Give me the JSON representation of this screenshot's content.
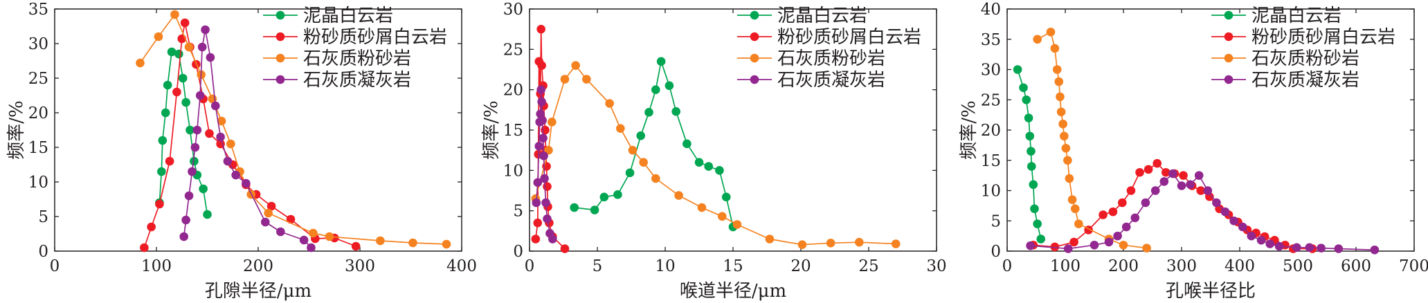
{
  "chart_data": [
    {
      "type": "line",
      "xlabel": "孔隙半径/μm",
      "ylabel": "频率/%",
      "xlim": [
        0,
        400
      ],
      "ylim": [
        0,
        35
      ],
      "xticks": [
        0,
        100,
        200,
        300,
        400
      ],
      "yticks": [
        0,
        5,
        10,
        15,
        20,
        25,
        30,
        35
      ],
      "legend_position": "top-right",
      "series": [
        {
          "name": "泥晶白云岩",
          "color": "#00a651",
          "points": [
            [
              103,
              7
            ],
            [
              105,
              11.5
            ],
            [
              106,
              16
            ],
            [
              109,
              20
            ],
            [
              111,
              24
            ],
            [
              115,
              28.8
            ],
            [
              122,
              28.5
            ],
            [
              126,
              25
            ],
            [
              129,
              21.5
            ],
            [
              133,
              17.5
            ],
            [
              137,
              13
            ],
            [
              140,
              11
            ],
            [
              146,
              9
            ],
            [
              150,
              5.3
            ]
          ]
        },
        {
          "name": "粉砂质砂屑白云岩",
          "color": "#ed1c24",
          "points": [
            [
              88,
              0.5
            ],
            [
              95,
              3.5
            ],
            [
              103,
              6.8
            ],
            [
              113,
              13
            ],
            [
              120,
              23
            ],
            [
              125,
              30.7
            ],
            [
              128,
              33
            ],
            [
              133,
              29.5
            ],
            [
              139,
              27
            ],
            [
              146,
              22
            ],
            [
              152,
              17
            ],
            [
              163,
              15.5
            ],
            [
              175,
              12.5
            ],
            [
              188,
              9.6
            ],
            [
              198,
              8.2
            ],
            [
              213,
              6.5
            ],
            [
              232,
              4.6
            ],
            [
              256,
              1.8
            ],
            [
              275,
              1.9
            ],
            [
              296,
              0.7
            ]
          ]
        },
        {
          "name": "石灰质粉砂岩",
          "color": "#f58220",
          "points": [
            [
              84,
              27.2
            ],
            [
              102,
              31
            ],
            [
              118,
              34.2
            ],
            [
              132,
              29.5
            ],
            [
              144,
              25.5
            ],
            [
              155,
              22
            ],
            [
              164,
              18.8
            ],
            [
              173,
              15.5
            ],
            [
              182,
              11.5
            ],
            [
              193,
              8.2
            ],
            [
              210,
              5.5
            ],
            [
              254,
              2.6
            ],
            [
              270,
              2.1
            ],
            [
              320,
              1.5
            ],
            [
              352,
              1.2
            ],
            [
              385,
              1
            ]
          ]
        },
        {
          "name": "石灰质凝灰岩",
          "color": "#92278f",
          "points": [
            [
              127,
              2.1
            ],
            [
              129,
              4.5
            ],
            [
              132,
              8
            ],
            [
              135,
              11.5
            ],
            [
              138,
              15
            ],
            [
              140,
              17.5
            ],
            [
              143,
              22.5
            ],
            [
              145,
              29.5
            ],
            [
              148,
              32
            ],
            [
              153,
              28
            ],
            [
              158,
              21
            ],
            [
              163,
              16.5
            ],
            [
              170,
              13
            ],
            [
              178,
              11
            ],
            [
              188,
              9.8
            ],
            [
              207,
              4.2
            ],
            [
              222,
              2.8
            ],
            [
              245,
              1.6
            ],
            [
              252,
              0.5
            ]
          ]
        }
      ]
    },
    {
      "type": "line",
      "xlabel": "喉道半径/μm",
      "ylabel": "频率/%",
      "xlim": [
        0,
        30
      ],
      "ylim": [
        0,
        30
      ],
      "xticks": [
        0,
        5,
        10,
        15,
        20,
        25,
        30
      ],
      "yticks": [
        0,
        5,
        10,
        15,
        20,
        25,
        30
      ],
      "legend_position": "top-right",
      "series": [
        {
          "name": "泥晶白云岩",
          "color": "#00a651",
          "points": [
            [
              3.3,
              5.4
            ],
            [
              4.8,
              5.1
            ],
            [
              5.5,
              6.7
            ],
            [
              6.5,
              7
            ],
            [
              7.4,
              9.7
            ],
            [
              8.2,
              14.3
            ],
            [
              8.8,
              17.2
            ],
            [
              9.3,
              20
            ],
            [
              9.7,
              23.5
            ],
            [
              10.3,
              20.5
            ],
            [
              10.8,
              17.3
            ],
            [
              11.6,
              13.3
            ],
            [
              12.5,
              11
            ],
            [
              13.2,
              10.5
            ],
            [
              14,
              10
            ],
            [
              14.5,
              6.7
            ],
            [
              15,
              3
            ]
          ]
        },
        {
          "name": "粉砂质砂屑白云岩",
          "color": "#ed1c24",
          "points": [
            [
              0.45,
              1.5
            ],
            [
              0.6,
              3.5
            ],
            [
              0.65,
              12
            ],
            [
              0.7,
              23.5
            ],
            [
              0.8,
              19.5
            ],
            [
              0.85,
              27.5
            ],
            [
              0.9,
              23
            ],
            [
              1.0,
              20.5
            ],
            [
              1.05,
              18
            ],
            [
              1.15,
              15
            ],
            [
              1.2,
              12.5
            ],
            [
              1.25,
              10.5
            ],
            [
              1.3,
              8
            ],
            [
              1.35,
              5.5
            ],
            [
              1.45,
              3.5
            ],
            [
              1.7,
              1.8
            ],
            [
              2.6,
              0.3
            ]
          ]
        },
        {
          "name": "石灰质粉砂岩",
          "color": "#f58220",
          "points": [
            [
              0.45,
              6.5
            ],
            [
              1.4,
              12.5
            ],
            [
              1.65,
              16
            ],
            [
              2.6,
              21.3
            ],
            [
              3.4,
              23
            ],
            [
              4.2,
              21.3
            ],
            [
              5.9,
              18.3
            ],
            [
              6.7,
              15.2
            ],
            [
              7.6,
              12.5
            ],
            [
              8.4,
              11
            ],
            [
              9.3,
              9
            ],
            [
              11,
              6.9
            ],
            [
              12.7,
              5.4
            ],
            [
              14.2,
              4.3
            ],
            [
              15.3,
              3.3
            ],
            [
              17.7,
              1.5
            ],
            [
              20.1,
              0.8
            ],
            [
              22.2,
              1
            ],
            [
              24.3,
              1.1
            ],
            [
              27,
              0.9
            ]
          ]
        },
        {
          "name": "石灰质凝灰岩",
          "color": "#92278f",
          "points": [
            [
              0.5,
              6
            ],
            [
              0.6,
              8.5
            ],
            [
              0.7,
              13
            ],
            [
              0.75,
              16
            ],
            [
              0.8,
              17
            ],
            [
              0.85,
              20
            ],
            [
              0.9,
              18.5
            ],
            [
              0.95,
              16.2
            ],
            [
              1.0,
              14
            ],
            [
              1.05,
              11.8
            ],
            [
              1.1,
              9
            ],
            [
              1.2,
              6
            ],
            [
              1.3,
              4
            ],
            [
              1.5,
              2.2
            ],
            [
              1.7,
              1.5
            ]
          ]
        }
      ]
    },
    {
      "type": "line",
      "xlabel": "孔喉半径比",
      "ylabel": "频率/%",
      "xlim": [
        0,
        700
      ],
      "ylim": [
        0,
        40
      ],
      "xticks": [
        0,
        100,
        200,
        300,
        400,
        500,
        600,
        700
      ],
      "yticks": [
        0,
        5,
        10,
        15,
        20,
        25,
        30,
        35,
        40
      ],
      "legend_position": "top-right",
      "series": [
        {
          "name": "泥晶白云岩",
          "color": "#00a651",
          "points": [
            [
              18,
              30
            ],
            [
              28,
              27
            ],
            [
              33,
              25
            ],
            [
              37,
              22
            ],
            [
              39,
              19
            ],
            [
              41,
              16.5
            ],
            [
              42,
              14
            ],
            [
              45,
              11
            ],
            [
              47,
              7
            ],
            [
              52,
              4.5
            ],
            [
              58,
              2
            ]
          ]
        },
        {
          "name": "粉砂质砂屑白云岩",
          "color": "#ed1c24",
          "points": [
            [
              45,
              1
            ],
            [
              82,
              0.7
            ],
            [
              115,
              1.5
            ],
            [
              140,
              3.5
            ],
            [
              165,
              6
            ],
            [
              182,
              6.5
            ],
            [
              198,
              8
            ],
            [
              213,
              10
            ],
            [
              228,
              13
            ],
            [
              243,
              13.5
            ],
            [
              258,
              14.5
            ],
            [
              273,
              13
            ],
            [
              288,
              12.8
            ],
            [
              303,
              12.5
            ],
            [
              318,
              10.8
            ],
            [
              333,
              10
            ],
            [
              348,
              9
            ],
            [
              365,
              7
            ],
            [
              381,
              6
            ],
            [
              397,
              4.8
            ],
            [
              413,
              3.5
            ],
            [
              428,
              3
            ],
            [
              443,
              2.4
            ],
            [
              460,
              1.8
            ],
            [
              478,
              1
            ],
            [
              492,
              0.4
            ],
            [
              525,
              0.4
            ]
          ]
        },
        {
          "name": "石灰质粉砂岩",
          "color": "#f58220",
          "points": [
            [
              52,
              35
            ],
            [
              75,
              36.2
            ],
            [
              82,
              33.5
            ],
            [
              86,
              30
            ],
            [
              89,
              28
            ],
            [
              91,
              25.5
            ],
            [
              93,
              23
            ],
            [
              96,
              21
            ],
            [
              98,
              19
            ],
            [
              101,
              17
            ],
            [
              104,
              15
            ],
            [
              107,
              12
            ],
            [
              112,
              8.5
            ],
            [
              117,
              7
            ],
            [
              123,
              4.5
            ],
            [
              175,
              2
            ],
            [
              200,
              1
            ],
            [
              240,
              0.5
            ]
          ]
        },
        {
          "name": "石灰质凝灰岩",
          "color": "#92278f",
          "points": [
            [
              40,
              0.9
            ],
            [
              105,
              0.4
            ],
            [
              150,
              1
            ],
            [
              175,
              1.5
            ],
            [
              190,
              2.5
            ],
            [
              205,
              4
            ],
            [
              220,
              5.5
            ],
            [
              238,
              8
            ],
            [
              255,
              10
            ],
            [
              270,
              11.5
            ],
            [
              285,
              12.8
            ],
            [
              300,
              10.8
            ],
            [
              315,
              11
            ],
            [
              330,
              12.5
            ],
            [
              345,
              10
            ],
            [
              360,
              8
            ],
            [
              375,
              6.5
            ],
            [
              390,
              5
            ],
            [
              405,
              4
            ],
            [
              420,
              2.5
            ],
            [
              437,
              1.8
            ],
            [
              452,
              1.2
            ],
            [
              468,
              0.8
            ],
            [
              498,
              0.6
            ],
            [
              520,
              0.6
            ],
            [
              540,
              0.5
            ],
            [
              570,
              0.4
            ],
            [
              632,
              0.2
            ]
          ]
        }
      ]
    }
  ]
}
